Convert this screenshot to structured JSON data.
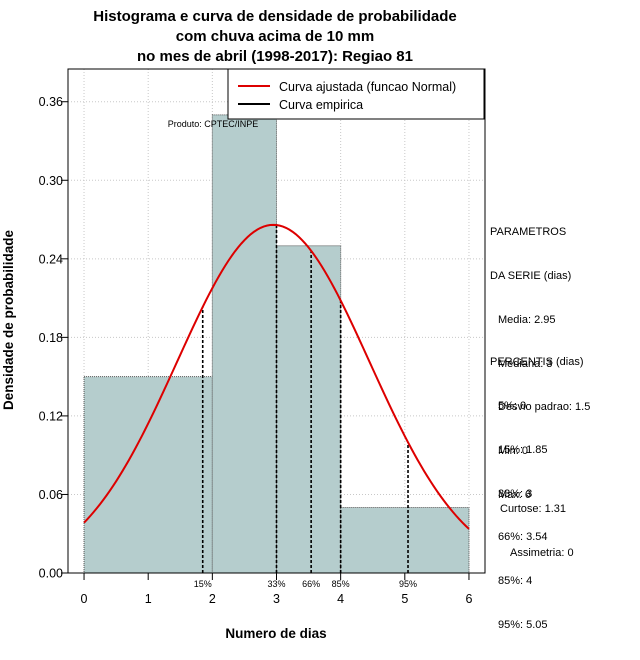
{
  "chart_data": {
    "type": "bar",
    "title": [
      "Histograma e curva de densidade de probabilidade",
      "com chuva acima de 10 mm",
      "no mes de abril (1998-2017): Regiao 81"
    ],
    "xlabel": "Numero de dias",
    "ylabel": "Densidade de probabilidade",
    "xlim": [
      -0.25,
      6.25
    ],
    "ylim": [
      0,
      0.385
    ],
    "x_ticks": [
      0,
      1,
      2,
      3,
      4,
      5,
      6
    ],
    "y_ticks": [
      0.0,
      0.06,
      0.12,
      0.18,
      0.24,
      0.3,
      0.36
    ],
    "y_tick_labels": [
      "0.00",
      "0.06",
      "0.12",
      "0.18",
      "0.24",
      "0.30",
      "0.36"
    ],
    "grid": true,
    "bins": [
      {
        "from": 0,
        "to": 2,
        "density": 0.15
      },
      {
        "from": 2,
        "to": 3,
        "density": 0.35
      },
      {
        "from": 3,
        "to": 4,
        "density": 0.25
      },
      {
        "from": 4,
        "to": 6,
        "density": 0.05
      }
    ],
    "bar_color": "#b5cdcd",
    "normal_curve": {
      "mean": 2.95,
      "sd": 1.5,
      "color": "#dd0000"
    },
    "percentile_markers": [
      {
        "label": "15%",
        "x": 1.85
      },
      {
        "label": "33%",
        "x": 3
      },
      {
        "label": "66%",
        "x": 3.54
      },
      {
        "label": "85%",
        "x": 4
      },
      {
        "label": "95%",
        "x": 5.05
      }
    ],
    "legend": {
      "position": "top-right",
      "entries": [
        {
          "name": "Curva ajustada (funcao Normal)",
          "color": "#dd0000"
        },
        {
          "name": "Curva empirica",
          "color": "#000000"
        }
      ]
    },
    "annotation": "Produto: CPTEC/INPE"
  },
  "params": {
    "title1": "PARAMETROS",
    "title2": "DA SERIE (dias)",
    "lines": [
      "Media: 2.95",
      "Mediana: 3",
      "Desvio padrao: 1.5",
      "Min: 0",
      "Max: 6"
    ]
  },
  "percentis": {
    "title": "PERCENTIS (dias)",
    "lines": [
      "5%: 0",
      "15%: 1.85",
      "33%: 3",
      "66%: 3.54",
      "85%: 4",
      "95%: 5.05"
    ]
  },
  "shape": {
    "curtose": "Curtose: 1.31",
    "assimetria": "Assimetria: 0"
  }
}
